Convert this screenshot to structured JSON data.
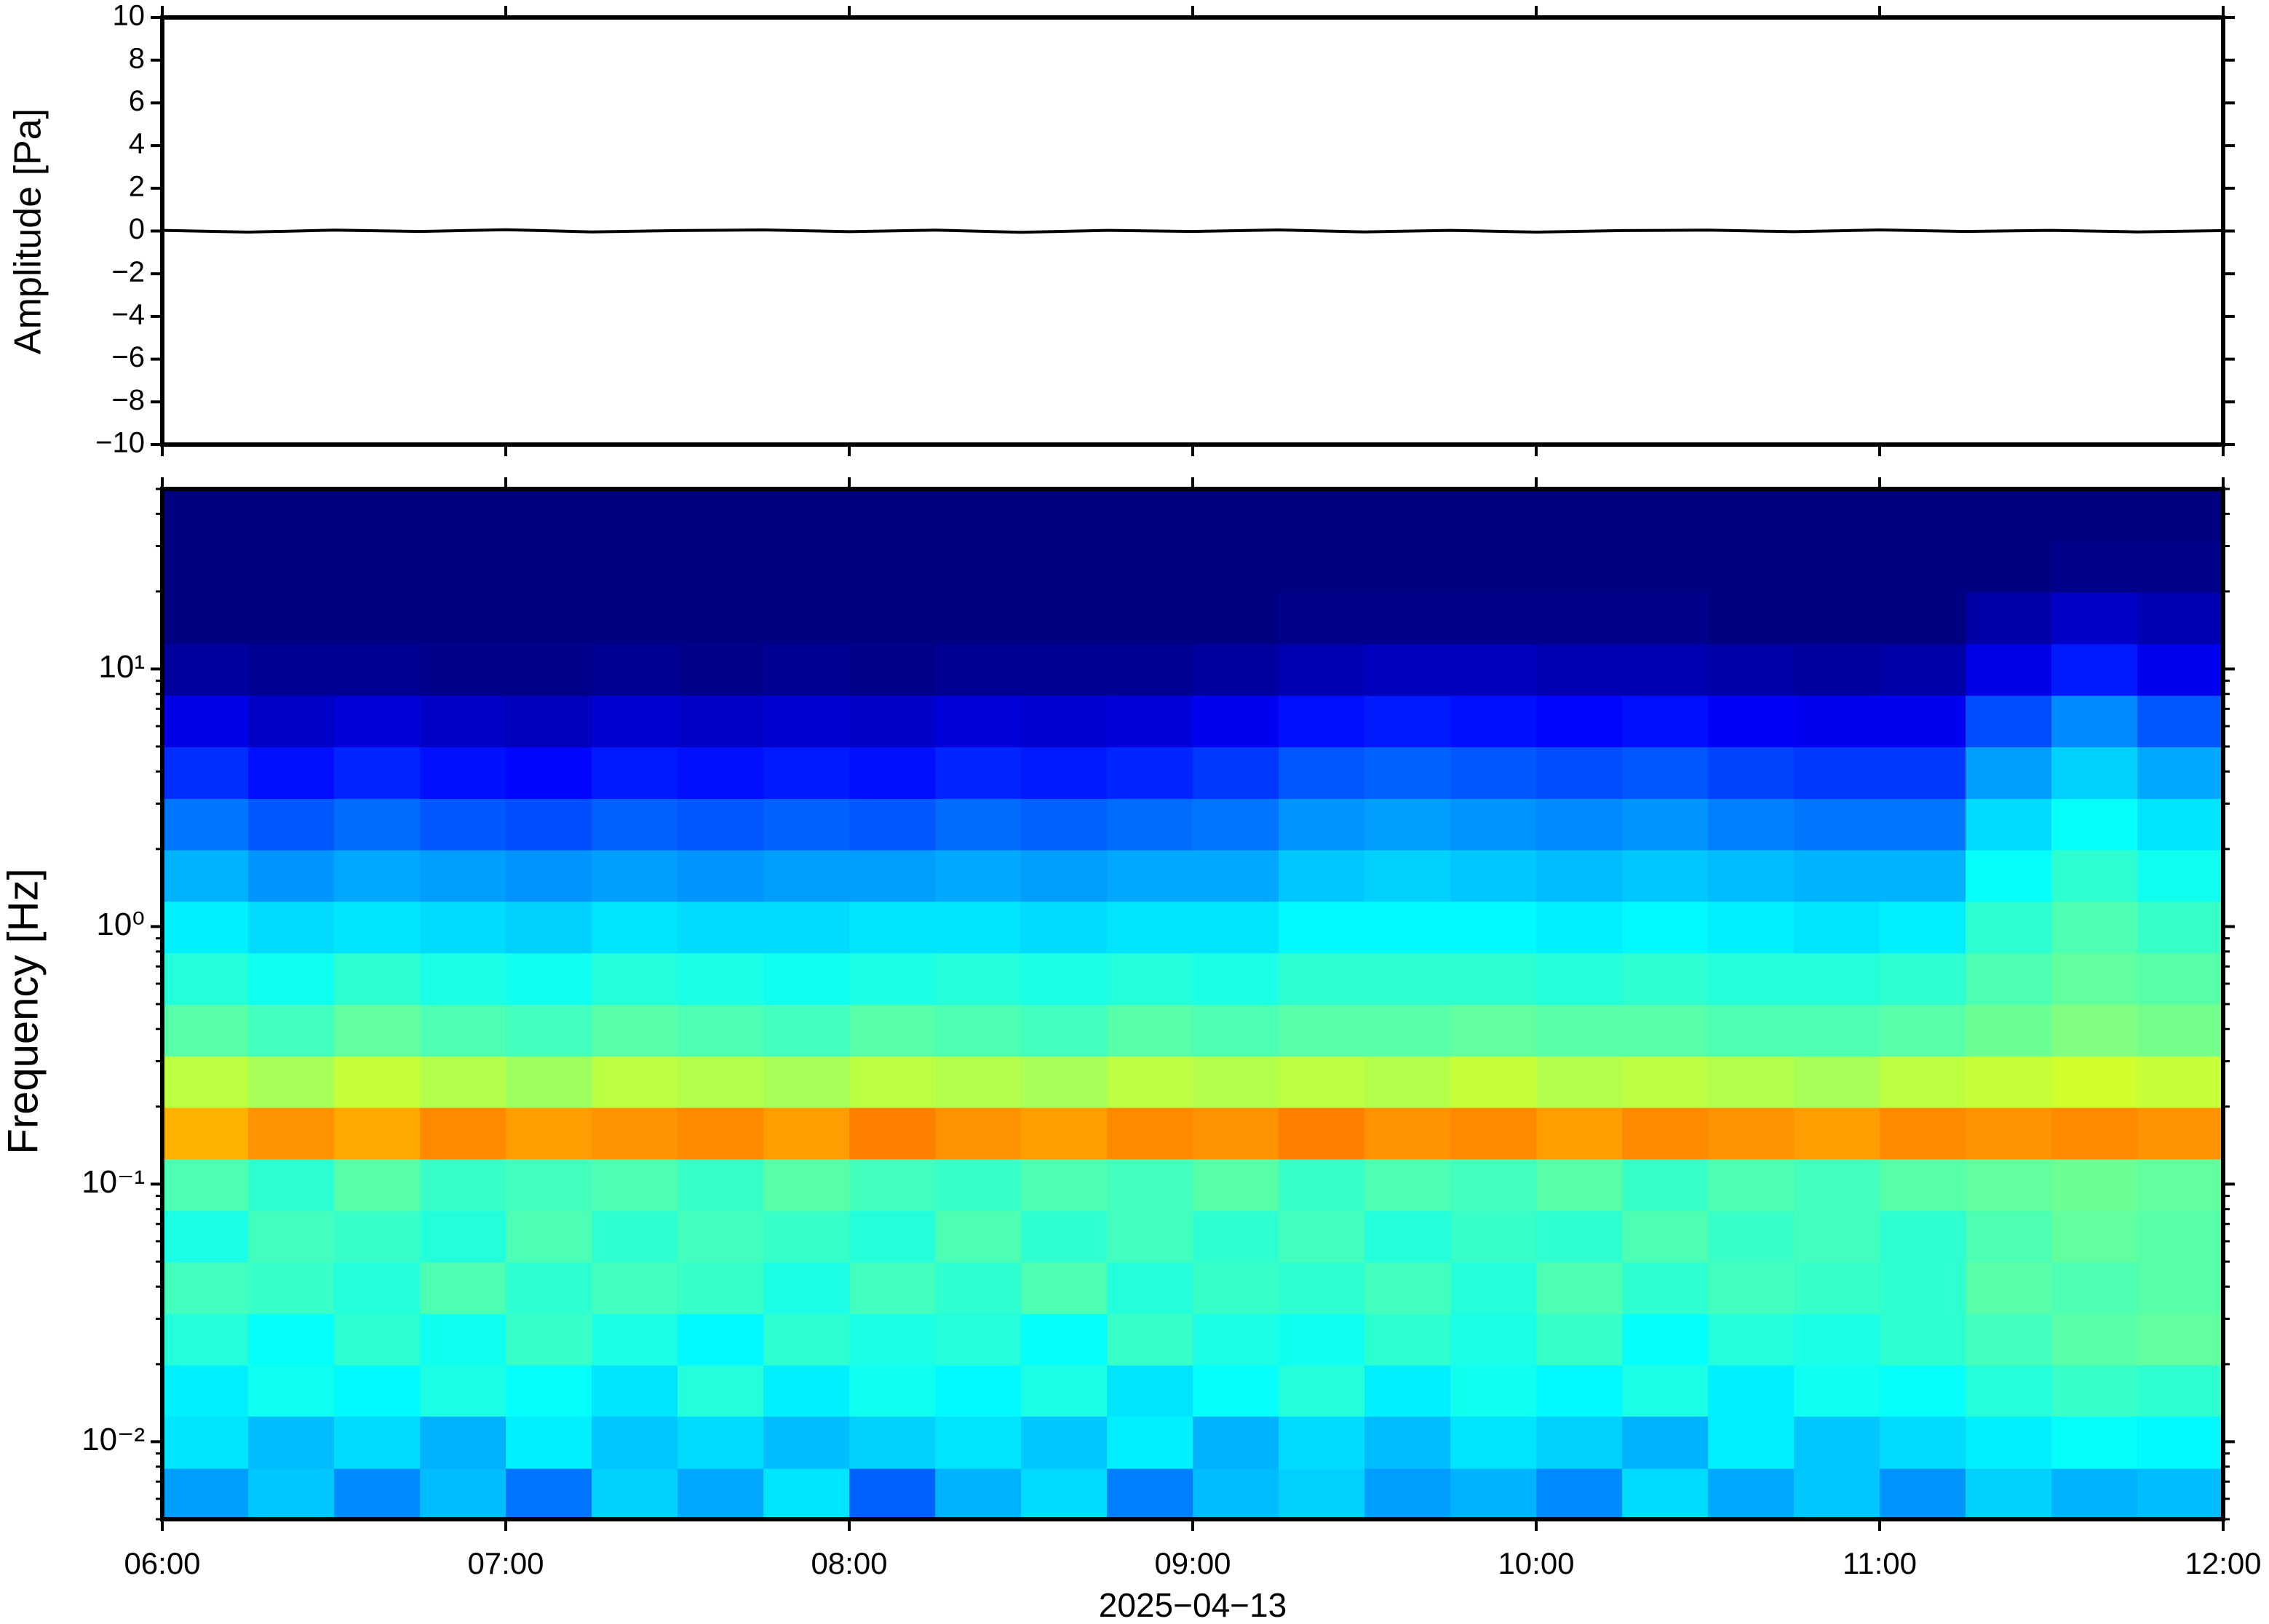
{
  "chart_data": [
    {
      "type": "line",
      "ylabel": "Amplitude [Pa]",
      "color": "#000000",
      "x": [
        6,
        6.25,
        6.5,
        6.75,
        7,
        7.25,
        7.5,
        7.75,
        8,
        8.25,
        8.5,
        8.75,
        9,
        9.25,
        9.5,
        9.75,
        10,
        10.25,
        10.5,
        10.75,
        11,
        11.25,
        11.5,
        11.75,
        12
      ],
      "values": [
        0.03,
        -0.05,
        0.04,
        -0.02,
        0.06,
        -0.04,
        0.02,
        0.05,
        -0.03,
        0.04,
        -0.06,
        0.03,
        -0.02,
        0.05,
        -0.04,
        0.03,
        -0.05,
        0.02,
        0.04,
        -0.03,
        0.05,
        -0.02,
        0.03,
        -0.04,
        0.02
      ],
      "xlim": [
        6,
        12
      ],
      "xticks": [
        6,
        7,
        8,
        9,
        10,
        11,
        12
      ],
      "ylim": [
        -10,
        10
      ],
      "yticks": [
        {
          "value": -10,
          "label": "−10"
        },
        {
          "value": -8,
          "label": "−8"
        },
        {
          "value": -6,
          "label": "−6"
        },
        {
          "value": -4,
          "label": "−4"
        },
        {
          "value": -2,
          "label": "−2"
        },
        0,
        2,
        4,
        6,
        8,
        10
      ]
    },
    {
      "type": "heatmap",
      "ylabel": "Frequency [Hz]",
      "xlabel": "2025−04−13",
      "colormap": "jet",
      "ylog": true,
      "xlim": [
        6,
        12
      ],
      "xticks": [
        {
          "value": 6,
          "label": "06:00"
        },
        {
          "value": 7,
          "label": "07:00"
        },
        {
          "value": 8,
          "label": "08:00"
        },
        {
          "value": 9,
          "label": "09:00"
        },
        {
          "value": 10,
          "label": "10:00"
        },
        {
          "value": 11,
          "label": "11:00"
        },
        {
          "value": 12,
          "label": "12:00"
        }
      ],
      "ylim": [
        0.005,
        50
      ],
      "yticks": [
        {
          "value": 0.01,
          "label": "10⁻²"
        },
        {
          "value": 0.1,
          "label": "10⁻¹"
        },
        {
          "value": 1,
          "label": "10⁰"
        },
        {
          "value": 10,
          "label": "10¹"
        }
      ],
      "x_bins": [
        6,
        6.25,
        6.5,
        6.75,
        7,
        7.25,
        7.5,
        7.75,
        8,
        8.25,
        8.5,
        8.75,
        9,
        9.25,
        9.5,
        9.75,
        10,
        10.25,
        10.5,
        10.75,
        11,
        11.25,
        11.5,
        11.75,
        12
      ],
      "y_bins": [
        0.005,
        0.0079,
        0.0126,
        0.0199,
        0.0315,
        0.05,
        0.0792,
        0.1256,
        0.199,
        0.315,
        0.5,
        0.792,
        1.256,
        1.99,
        3.15,
        5,
        7.92,
        12.56,
        19.9,
        31.5,
        50
      ],
      "zlim": [
        0,
        100
      ],
      "z": [
        [
          28,
          35,
          36,
          41,
          44,
          40,
          45,
          70,
          56,
          46,
          41,
          36,
          30,
          24,
          17,
          10,
          3,
          0,
          0,
          0
        ],
        [
          32,
          31,
          39,
          38,
          43,
          44,
          42,
          73,
          54,
          44,
          39,
          34,
          27,
          21,
          14,
          7,
          2,
          0,
          0,
          0
        ],
        [
          26,
          34,
          37,
          42,
          41,
          43,
          46,
          71,
          57,
          47,
          42,
          35,
          29,
          23,
          16,
          9,
          2,
          0,
          0,
          0
        ],
        [
          31,
          30,
          40,
          39,
          45,
          41,
          43,
          74,
          55,
          45,
          40,
          34,
          28,
          21,
          14,
          7,
          1,
          0,
          0,
          0
        ],
        [
          24,
          36,
          38,
          43,
          42,
          45,
          44,
          72,
          53,
          44,
          39,
          33,
          27,
          20,
          13,
          6,
          1,
          0,
          0,
          0
        ],
        [
          33,
          32,
          35,
          40,
          44,
          42,
          45,
          73,
          56,
          46,
          41,
          35,
          28,
          22,
          15,
          8,
          2,
          0,
          0,
          0
        ],
        [
          29,
          34,
          41,
          37,
          43,
          44,
          43,
          74,
          55,
          45,
          40,
          34,
          27,
          21,
          14,
          7,
          1,
          0,
          0,
          0
        ],
        [
          35,
          31,
          36,
          42,
          40,
          43,
          46,
          72,
          54,
          44,
          39,
          34,
          28,
          22,
          15,
          8,
          2,
          0,
          0,
          0
        ],
        [
          22,
          33,
          39,
          40,
          44,
          41,
          44,
          75,
          56,
          46,
          40,
          35,
          28,
          21,
          14,
          7,
          1,
          0,
          0,
          0
        ],
        [
          30,
          35,
          37,
          41,
          42,
          45,
          43,
          73,
          55,
          45,
          41,
          35,
          29,
          23,
          16,
          9,
          2,
          0,
          0,
          0
        ],
        [
          34,
          32,
          40,
          38,
          45,
          42,
          45,
          72,
          54,
          44,
          40,
          34,
          28,
          22,
          15,
          8,
          2,
          0,
          0,
          0
        ],
        [
          25,
          36,
          35,
          43,
          41,
          44,
          44,
          74,
          56,
          46,
          41,
          35,
          29,
          23,
          16,
          9,
          2,
          0,
          0,
          0
        ],
        [
          31,
          30,
          38,
          40,
          43,
          42,
          46,
          73,
          55,
          45,
          40,
          35,
          29,
          24,
          18,
          11,
          3,
          0,
          0,
          0
        ],
        [
          33,
          34,
          41,
          39,
          42,
          44,
          43,
          75,
          56,
          46,
          42,
          37,
          32,
          27,
          21,
          14,
          5,
          1,
          0,
          0
        ],
        [
          28,
          31,
          36,
          42,
          44,
          41,
          45,
          73,
          55,
          46,
          42,
          37,
          33,
          28,
          22,
          15,
          6,
          1,
          0,
          0
        ],
        [
          30,
          35,
          39,
          40,
          41,
          43,
          44,
          74,
          57,
          47,
          42,
          37,
          32,
          27,
          21,
          14,
          6,
          1,
          0,
          0
        ],
        [
          26,
          33,
          37,
          43,
          45,
          42,
          46,
          72,
          55,
          46,
          41,
          36,
          31,
          26,
          20,
          13,
          5,
          1,
          0,
          0
        ],
        [
          34,
          30,
          40,
          38,
          42,
          45,
          43,
          74,
          56,
          46,
          42,
          37,
          32,
          27,
          21,
          14,
          5,
          1,
          0,
          0
        ],
        [
          29,
          36,
          36,
          41,
          44,
          43,
          45,
          73,
          55,
          45,
          41,
          36,
          31,
          25,
          19,
          12,
          4,
          0,
          0,
          0
        ],
        [
          32,
          32,
          39,
          40,
          43,
          44,
          44,
          72,
          54,
          45,
          41,
          35,
          30,
          24,
          18,
          11,
          3,
          0,
          0,
          0
        ],
        [
          27,
          34,
          38,
          42,
          42,
          42,
          46,
          74,
          56,
          46,
          42,
          36,
          30,
          24,
          18,
          11,
          4,
          0,
          0,
          0
        ],
        [
          33,
          36,
          41,
          44,
          46,
          45,
          47,
          73,
          57,
          48,
          45,
          42,
          38,
          34,
          28,
          20,
          10,
          4,
          0,
          0
        ],
        [
          30,
          38,
          43,
          46,
          45,
          47,
          48,
          74,
          58,
          50,
          47,
          45,
          42,
          38,
          33,
          26,
          15,
          7,
          1,
          0
        ],
        [
          31,
          37,
          42,
          47,
          46,
          46,
          47,
          73,
          57,
          49,
          46,
          43,
          39,
          35,
          29,
          21,
          11,
          5,
          1,
          0
        ]
      ]
    }
  ]
}
